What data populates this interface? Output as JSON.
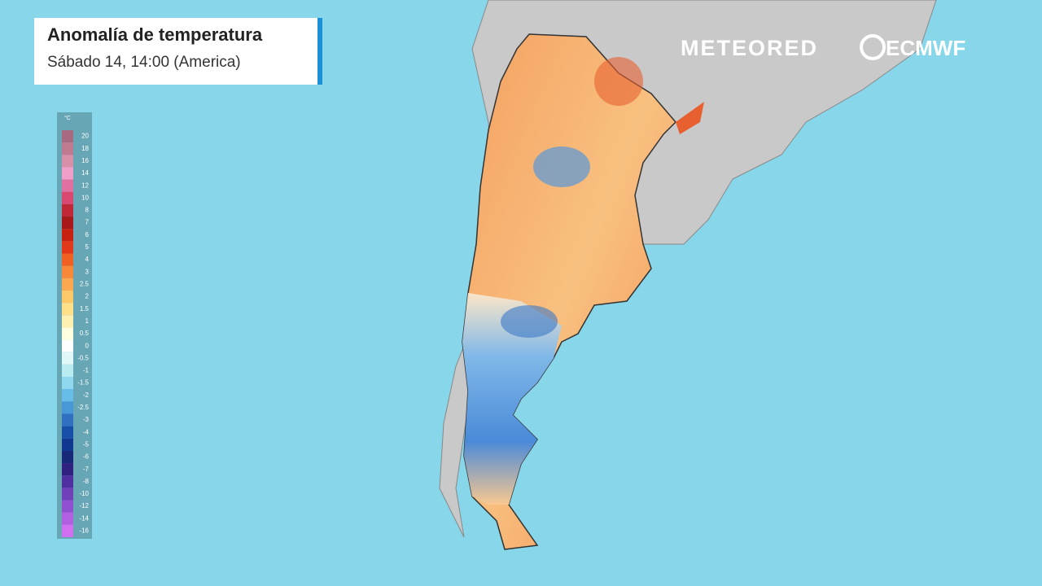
{
  "header": {
    "title": "Anomalía de temperatura",
    "subtitle": "Sábado 14, 14:00 (America)"
  },
  "logos": {
    "brand": "METEORED",
    "partner": "ECMWF"
  },
  "legend": {
    "unit": "°C",
    "items": [
      {
        "label": "20",
        "color": "#a86a80"
      },
      {
        "label": "18",
        "color": "#c07a90"
      },
      {
        "label": "16",
        "color": "#d890a8"
      },
      {
        "label": "14",
        "color": "#f0a0c8"
      },
      {
        "label": "12",
        "color": "#e070a0"
      },
      {
        "label": "10",
        "color": "#d84870"
      },
      {
        "label": "8",
        "color": "#c02838"
      },
      {
        "label": "7",
        "color": "#a81818"
      },
      {
        "label": "6",
        "color": "#c82010"
      },
      {
        "label": "5",
        "color": "#e03818"
      },
      {
        "label": "4",
        "color": "#f06020"
      },
      {
        "label": "3",
        "color": "#f88838"
      },
      {
        "label": "2.5",
        "color": "#fba850"
      },
      {
        "label": "2",
        "color": "#fcc868"
      },
      {
        "label": "1.5",
        "color": "#fde088"
      },
      {
        "label": "1",
        "color": "#fef0b0"
      },
      {
        "label": "0.5",
        "color": "#fffde0"
      },
      {
        "label": "0",
        "color": "#ffffff"
      },
      {
        "label": "-0.5",
        "color": "#e0f8f8"
      },
      {
        "label": "-1",
        "color": "#b8ecf0"
      },
      {
        "label": "-1.5",
        "color": "#90d8f0"
      },
      {
        "label": "-2",
        "color": "#68bce8"
      },
      {
        "label": "-2.5",
        "color": "#4898d8"
      },
      {
        "label": "-3",
        "color": "#3070c0"
      },
      {
        "label": "-4",
        "color": "#1850a8"
      },
      {
        "label": "-5",
        "color": "#103890"
      },
      {
        "label": "-6",
        "color": "#182878"
      },
      {
        "label": "-7",
        "color": "#302080"
      },
      {
        "label": "-8",
        "color": "#5030a0"
      },
      {
        "label": "-10",
        "color": "#7040b8"
      },
      {
        "label": "-12",
        "color": "#9050d0"
      },
      {
        "label": "-14",
        "color": "#b060e0"
      },
      {
        "label": "-16",
        "color": "#d070f0"
      }
    ]
  }
}
